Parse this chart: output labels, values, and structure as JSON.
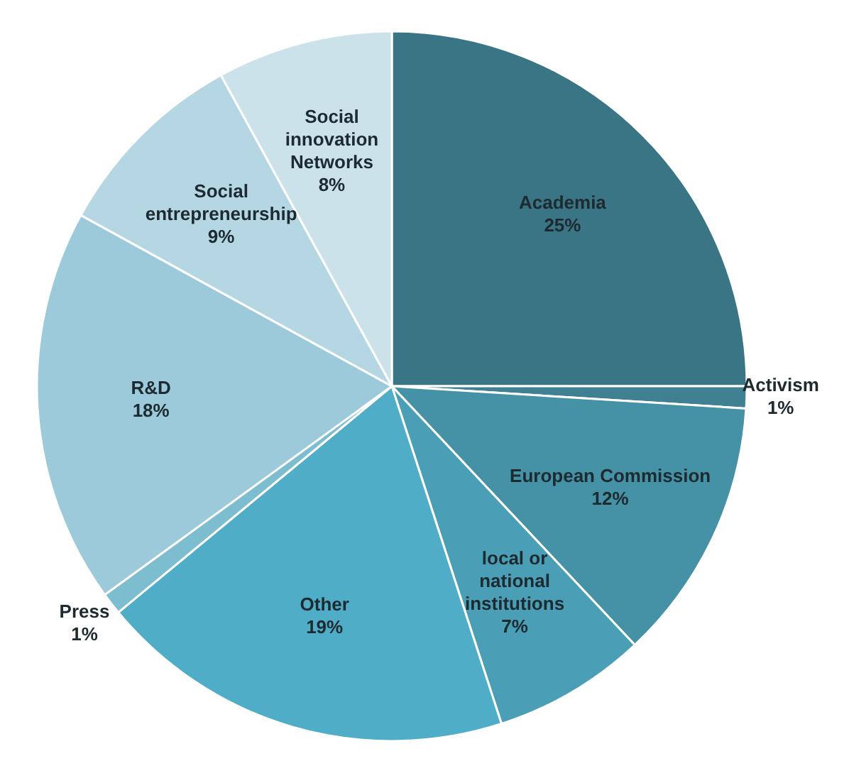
{
  "chart_data": {
    "type": "pie",
    "categories": [
      "Academia",
      "Activism",
      "European Commission",
      "local or national institutions",
      "Other",
      "Press",
      "R&D",
      "Social entrepreneurship",
      "Social innovation Networks"
    ],
    "values": [
      25,
      1,
      12,
      7,
      19,
      1,
      18,
      9,
      8
    ],
    "value_labels": [
      "25%",
      "1%",
      "12%",
      "7%",
      "19%",
      "1%",
      "18%",
      "9%",
      "8%"
    ],
    "colors": [
      "#3a7585",
      "#3f8193",
      "#4591a5",
      "#4a9fb6",
      "#4fadc7",
      "#7dbdd0",
      "#9dcadb",
      "#b5d7e4",
      "#cbe2eb"
    ],
    "legend": false
  }
}
